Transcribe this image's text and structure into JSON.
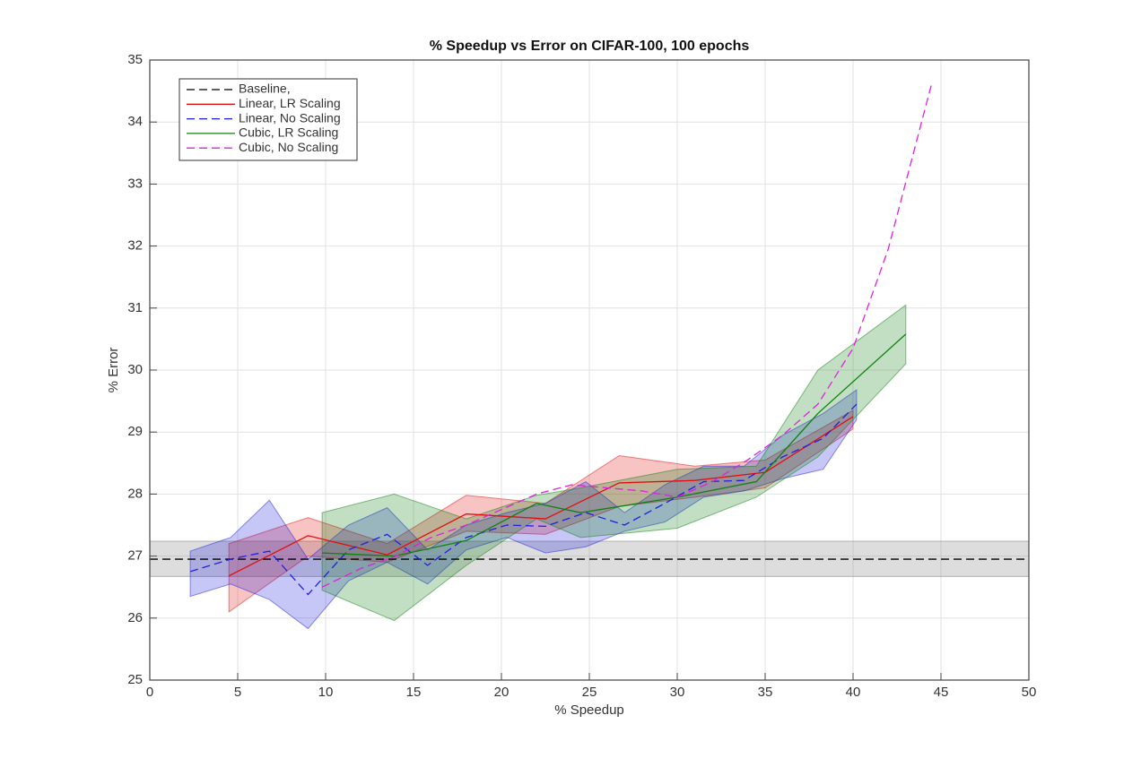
{
  "chart_data": {
    "type": "line",
    "title": "% Speedup vs Error on CIFAR-100, 100 epochs",
    "xlabel": "% Speedup",
    "ylabel": "% Error",
    "xlim": [
      0,
      50
    ],
    "ylim": [
      25,
      35
    ],
    "xticks": [
      0,
      5,
      10,
      15,
      20,
      25,
      30,
      35,
      40,
      45,
      50
    ],
    "yticks": [
      25,
      26,
      27,
      28,
      29,
      30,
      31,
      32,
      33,
      34,
      35
    ],
    "grid": true,
    "legend": "upper left",
    "series": [
      {
        "name": "Baseline,",
        "color": "#000000",
        "dash": true,
        "band_color": "#777777",
        "x": [
          0,
          50
        ],
        "values": [
          26.95,
          26.95
        ],
        "lower": [
          26.67,
          26.67
        ],
        "upper": [
          27.24,
          27.24
        ]
      },
      {
        "name": "Linear, LR Scaling",
        "color": "#e01010",
        "dash": false,
        "x": [
          4.5,
          9,
          13.5,
          18,
          22.5,
          26.7,
          31,
          35,
          40
        ],
        "values": [
          26.68,
          27.33,
          27.02,
          27.68,
          27.6,
          28.18,
          28.22,
          28.35,
          29.25
        ],
        "lower": [
          26.1,
          27.0,
          26.9,
          27.4,
          27.35,
          27.8,
          27.95,
          28.1,
          29.05
        ],
        "upper": [
          27.2,
          27.62,
          27.2,
          27.98,
          27.85,
          28.62,
          28.45,
          28.55,
          29.35
        ]
      },
      {
        "name": "Linear, No Scaling",
        "color": "#2020e0",
        "dash": true,
        "x": [
          2.3,
          4.6,
          6.8,
          9,
          11.3,
          13.5,
          15.8,
          18,
          20.3,
          22.5,
          24.8,
          27,
          29.3,
          31.5,
          33.8,
          36,
          38.3,
          40.2
        ],
        "values": [
          26.75,
          26.95,
          27.08,
          26.38,
          27.1,
          27.35,
          26.85,
          27.3,
          27.5,
          27.48,
          27.7,
          27.5,
          27.85,
          28.2,
          28.22,
          28.6,
          28.9,
          29.45
        ],
        "lower": [
          26.35,
          26.55,
          26.3,
          25.83,
          26.6,
          26.9,
          26.55,
          27.1,
          27.3,
          27.05,
          27.15,
          27.4,
          27.55,
          27.95,
          28.05,
          28.25,
          28.4,
          29.2
        ],
        "upper": [
          27.08,
          27.3,
          27.9,
          26.95,
          27.5,
          27.78,
          27.1,
          27.5,
          27.7,
          27.85,
          28.2,
          27.7,
          28.15,
          28.45,
          28.45,
          28.95,
          29.3,
          29.68
        ]
      },
      {
        "name": "Cubic, LR Scaling",
        "color": "#108010",
        "dash": false,
        "x": [
          9.8,
          13.9,
          18,
          22,
          24.5,
          30,
          34.5,
          38,
          43
        ],
        "values": [
          27.05,
          27.0,
          27.25,
          27.85,
          27.7,
          27.95,
          28.2,
          29.3,
          30.58
        ],
        "lower": [
          26.45,
          25.96,
          26.85,
          27.6,
          27.3,
          27.45,
          27.95,
          28.6,
          30.1
        ],
        "upper": [
          27.7,
          28.0,
          27.6,
          27.98,
          28.1,
          28.4,
          28.45,
          30.0,
          31.05
        ]
      },
      {
        "name": "Cubic, No Scaling",
        "color": "#e020e0",
        "dash": true,
        "x": [
          9.8,
          12,
          14,
          16,
          18,
          20,
          22,
          24,
          26,
          28,
          30,
          32,
          34,
          36,
          38,
          40,
          42,
          44.5
        ],
        "values": [
          26.5,
          26.8,
          27.0,
          27.3,
          27.5,
          27.75,
          28.0,
          28.15,
          28.1,
          28.05,
          27.95,
          28.2,
          28.55,
          28.95,
          29.45,
          30.35,
          31.95,
          34.65
        ]
      }
    ]
  }
}
